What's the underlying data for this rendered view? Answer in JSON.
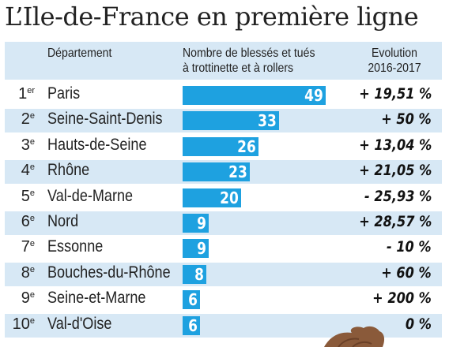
{
  "title": "L’Ile-de-France en première ligne",
  "headers": {
    "department": "Département",
    "count_line1": "Nombre de blessés et tués",
    "count_line2": "à trottinette et à rollers",
    "evo_line1": "Evolution",
    "evo_line2": "2016-2017"
  },
  "colors": {
    "bar": "#1ea1e0",
    "band": "#d7e8f5"
  },
  "chart_data": {
    "type": "bar",
    "orientation": "horizontal",
    "xlim": [
      0,
      49
    ],
    "grid": false,
    "rows": [
      {
        "rank": "1",
        "suffix": "er",
        "department": "Paris",
        "value": 49,
        "evolution": "+ 19,51 %"
      },
      {
        "rank": "2",
        "suffix": "e",
        "department": "Seine-Saint-Denis",
        "value": 33,
        "evolution": "+ 50 %"
      },
      {
        "rank": "3",
        "suffix": "e",
        "department": "Hauts-de-Seine",
        "value": 26,
        "evolution": "+ 13,04 %"
      },
      {
        "rank": "4",
        "suffix": "e",
        "department": "Rhône",
        "value": 23,
        "evolution": "+ 21,05 %"
      },
      {
        "rank": "5",
        "suffix": "e",
        "department": "Val-de-Marne",
        "value": 20,
        "evolution": "- 25,93 %"
      },
      {
        "rank": "6",
        "suffix": "e",
        "department": "Nord",
        "value": 9,
        "evolution": "+ 28,57 %"
      },
      {
        "rank": "7",
        "suffix": "e",
        "department": "Essonne",
        "value": 9,
        "evolution": "- 10 %"
      },
      {
        "rank": "8",
        "suffix": "e",
        "department": "Bouches-du-Rhône",
        "value": 8,
        "evolution": "+ 60 %"
      },
      {
        "rank": "9",
        "suffix": "e",
        "department": "Seine-et-Marne",
        "value": 6,
        "evolution": "+ 200 %"
      },
      {
        "rank": "10",
        "suffix": "e",
        "department": "Val-d'Oise",
        "value": 6,
        "evolution": "0 %"
      }
    ]
  }
}
